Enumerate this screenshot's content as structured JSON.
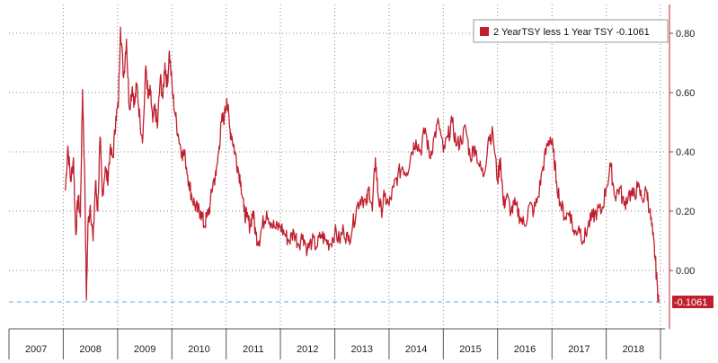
{
  "chart_data": {
    "type": "line",
    "title": "",
    "xlabel": "",
    "ylabel": "",
    "ylim": [
      -0.12,
      0.9
    ],
    "xlim": [
      "2007-01-01",
      "2019-01-01"
    ],
    "y_ticks": [
      "0.80",
      "0.60",
      "0.40",
      "0.20",
      "0.00"
    ],
    "x_tick_labels": [
      "2007",
      "2008",
      "2009",
      "2010",
      "2011",
      "2012",
      "2013",
      "2014",
      "2015",
      "2016",
      "2017",
      "2018"
    ],
    "grid": true,
    "legend_position": "top-right",
    "last_value_label": "-0.1061",
    "reference_line": {
      "y": -0.1061,
      "style": "dashed"
    },
    "series": [
      {
        "name": "2 YearTSY less 1 Year TSY -0.1061",
        "color": "#c0202e",
        "points": [
          [
            "2008-01-15",
            0.27
          ],
          [
            "2008-02-01",
            0.42
          ],
          [
            "2008-02-20",
            0.3
          ],
          [
            "2008-03-10",
            0.38
          ],
          [
            "2008-03-25",
            0.12
          ],
          [
            "2008-04-10",
            0.25
          ],
          [
            "2008-04-25",
            0.18
          ],
          [
            "2008-05-10",
            0.61
          ],
          [
            "2008-05-25",
            0.3
          ],
          [
            "2008-06-05",
            -0.1
          ],
          [
            "2008-06-15",
            0.15
          ],
          [
            "2008-07-01",
            0.22
          ],
          [
            "2008-07-20",
            0.1
          ],
          [
            "2008-08-05",
            0.3
          ],
          [
            "2008-08-20",
            0.2
          ],
          [
            "2008-09-05",
            0.45
          ],
          [
            "2008-09-20",
            0.25
          ],
          [
            "2008-10-10",
            0.35
          ],
          [
            "2008-10-25",
            0.3
          ],
          [
            "2008-11-10",
            0.4
          ],
          [
            "2008-12-01",
            0.38
          ],
          [
            "2008-12-20",
            0.52
          ],
          [
            "2009-01-05",
            0.55
          ],
          [
            "2009-01-20",
            0.82
          ],
          [
            "2009-02-10",
            0.65
          ],
          [
            "2009-03-01",
            0.78
          ],
          [
            "2009-03-20",
            0.55
          ],
          [
            "2009-04-10",
            0.62
          ],
          [
            "2009-04-25",
            0.56
          ],
          [
            "2009-05-10",
            0.63
          ],
          [
            "2009-06-01",
            0.5
          ],
          [
            "2009-06-20",
            0.45
          ],
          [
            "2009-07-10",
            0.69
          ],
          [
            "2009-07-25",
            0.58
          ],
          [
            "2009-08-10",
            0.6
          ],
          [
            "2009-08-25",
            0.5
          ],
          [
            "2009-09-10",
            0.55
          ],
          [
            "2009-09-25",
            0.48
          ],
          [
            "2009-10-15",
            0.65
          ],
          [
            "2009-11-01",
            0.58
          ],
          [
            "2009-11-15",
            0.7
          ],
          [
            "2009-12-01",
            0.62
          ],
          [
            "2009-12-15",
            0.74
          ],
          [
            "2010-01-05",
            0.6
          ],
          [
            "2010-01-25",
            0.52
          ],
          [
            "2010-02-15",
            0.45
          ],
          [
            "2010-03-10",
            0.4
          ],
          [
            "2010-04-01",
            0.38
          ],
          [
            "2010-04-25",
            0.3
          ],
          [
            "2010-05-15",
            0.25
          ],
          [
            "2010-06-05",
            0.22
          ],
          [
            "2010-06-25",
            0.2
          ],
          [
            "2010-07-15",
            0.2
          ],
          [
            "2010-08-05",
            0.15
          ],
          [
            "2010-08-25",
            0.18
          ],
          [
            "2010-09-15",
            0.22
          ],
          [
            "2010-10-05",
            0.3
          ],
          [
            "2010-10-25",
            0.32
          ],
          [
            "2010-11-15",
            0.42
          ],
          [
            "2010-12-01",
            0.5
          ],
          [
            "2010-12-20",
            0.52
          ],
          [
            "2011-01-05",
            0.58
          ],
          [
            "2011-01-25",
            0.48
          ],
          [
            "2011-02-10",
            0.45
          ],
          [
            "2011-03-01",
            0.4
          ],
          [
            "2011-03-20",
            0.35
          ],
          [
            "2011-04-10",
            0.3
          ],
          [
            "2011-05-01",
            0.2
          ],
          [
            "2011-05-20",
            0.18
          ],
          [
            "2011-06-10",
            0.15
          ],
          [
            "2011-06-30",
            0.2
          ],
          [
            "2011-07-20",
            0.12
          ],
          [
            "2011-08-10",
            0.1
          ],
          [
            "2011-09-01",
            0.15
          ],
          [
            "2011-10-01",
            0.2
          ],
          [
            "2011-11-01",
            0.16
          ],
          [
            "2011-12-01",
            0.14
          ],
          [
            "2012-01-01",
            0.15
          ],
          [
            "2012-02-01",
            0.12
          ],
          [
            "2012-03-01",
            0.1
          ],
          [
            "2012-04-01",
            0.13
          ],
          [
            "2012-05-01",
            0.09
          ],
          [
            "2012-06-01",
            0.12
          ],
          [
            "2012-07-01",
            0.07
          ],
          [
            "2012-08-01",
            0.1
          ],
          [
            "2012-09-01",
            0.08
          ],
          [
            "2012-10-01",
            0.12
          ],
          [
            "2012-11-01",
            0.1
          ],
          [
            "2012-12-01",
            0.09
          ],
          [
            "2013-01-01",
            0.13
          ],
          [
            "2013-02-01",
            0.1
          ],
          [
            "2013-03-01",
            0.14
          ],
          [
            "2013-04-01",
            0.1
          ],
          [
            "2013-05-01",
            0.15
          ],
          [
            "2013-06-01",
            0.22
          ],
          [
            "2013-07-01",
            0.25
          ],
          [
            "2013-08-01",
            0.22
          ],
          [
            "2013-08-20",
            0.28
          ],
          [
            "2013-09-10",
            0.2
          ],
          [
            "2013-10-01",
            0.38
          ],
          [
            "2013-10-20",
            0.25
          ],
          [
            "2013-11-10",
            0.2
          ],
          [
            "2013-12-01",
            0.25
          ],
          [
            "2014-01-01",
            0.22
          ],
          [
            "2014-02-01",
            0.28
          ],
          [
            "2014-03-01",
            0.32
          ],
          [
            "2014-04-01",
            0.35
          ],
          [
            "2014-05-01",
            0.33
          ],
          [
            "2014-06-01",
            0.4
          ],
          [
            "2014-07-01",
            0.44
          ],
          [
            "2014-08-01",
            0.4
          ],
          [
            "2014-09-01",
            0.48
          ],
          [
            "2014-10-01",
            0.38
          ],
          [
            "2014-11-01",
            0.45
          ],
          [
            "2014-12-01",
            0.5
          ],
          [
            "2015-01-01",
            0.4
          ],
          [
            "2015-02-01",
            0.45
          ],
          [
            "2015-03-01",
            0.5
          ],
          [
            "2015-04-01",
            0.42
          ],
          [
            "2015-05-01",
            0.44
          ],
          [
            "2015-06-01",
            0.48
          ],
          [
            "2015-07-01",
            0.38
          ],
          [
            "2015-08-01",
            0.42
          ],
          [
            "2015-09-01",
            0.35
          ],
          [
            "2015-10-01",
            0.32
          ],
          [
            "2015-11-01",
            0.45
          ],
          [
            "2015-12-01",
            0.46
          ],
          [
            "2016-01-01",
            0.3
          ],
          [
            "2016-01-20",
            0.38
          ],
          [
            "2016-02-10",
            0.22
          ],
          [
            "2016-03-01",
            0.25
          ],
          [
            "2016-04-01",
            0.2
          ],
          [
            "2016-05-01",
            0.22
          ],
          [
            "2016-06-01",
            0.18
          ],
          [
            "2016-07-01",
            0.15
          ],
          [
            "2016-08-01",
            0.22
          ],
          [
            "2016-09-01",
            0.2
          ],
          [
            "2016-10-01",
            0.25
          ],
          [
            "2016-11-01",
            0.35
          ],
          [
            "2016-12-01",
            0.42
          ],
          [
            "2016-12-20",
            0.45
          ],
          [
            "2017-01-10",
            0.4
          ],
          [
            "2017-02-01",
            0.3
          ],
          [
            "2017-03-01",
            0.22
          ],
          [
            "2017-04-01",
            0.18
          ],
          [
            "2017-05-01",
            0.2
          ],
          [
            "2017-06-01",
            0.12
          ],
          [
            "2017-07-01",
            0.15
          ],
          [
            "2017-08-01",
            0.1
          ],
          [
            "2017-09-01",
            0.15
          ],
          [
            "2017-10-01",
            0.18
          ],
          [
            "2017-11-01",
            0.2
          ],
          [
            "2017-12-01",
            0.2
          ],
          [
            "2018-01-01",
            0.28
          ],
          [
            "2018-02-01",
            0.35
          ],
          [
            "2018-03-01",
            0.25
          ],
          [
            "2018-04-01",
            0.28
          ],
          [
            "2018-05-01",
            0.22
          ],
          [
            "2018-06-01",
            0.26
          ],
          [
            "2018-07-01",
            0.25
          ],
          [
            "2018-08-01",
            0.28
          ],
          [
            "2018-09-01",
            0.24
          ],
          [
            "2018-10-01",
            0.27
          ],
          [
            "2018-10-20",
            0.2
          ],
          [
            "2018-11-10",
            0.12
          ],
          [
            "2018-11-25",
            0.05
          ],
          [
            "2018-12-10",
            -0.05
          ],
          [
            "2018-12-20",
            -0.1061
          ]
        ]
      }
    ]
  }
}
